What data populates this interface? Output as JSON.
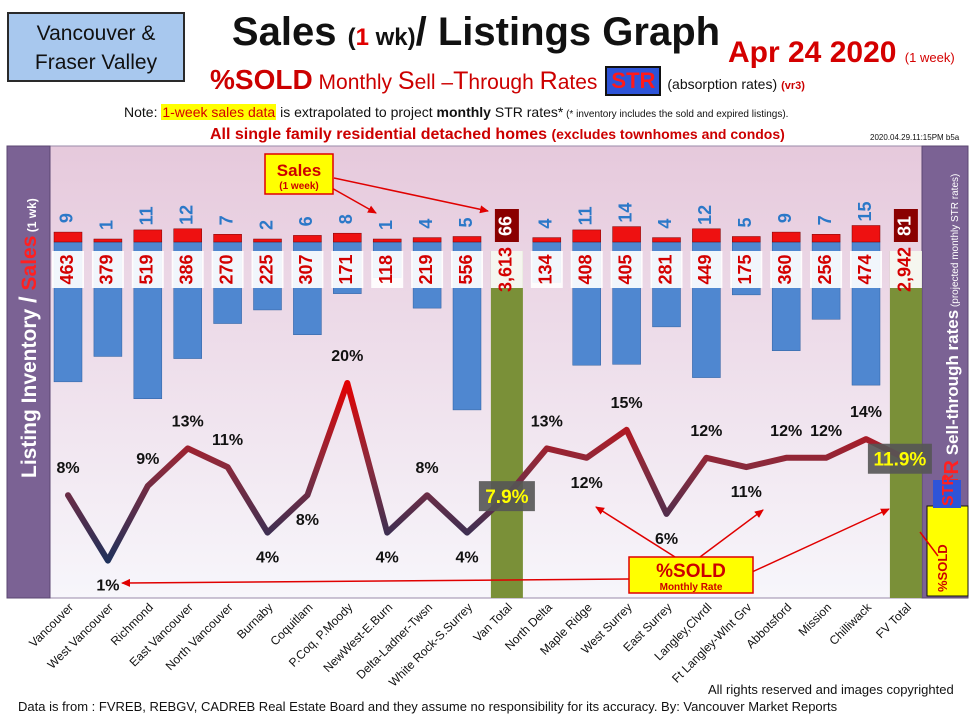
{
  "header": {
    "region_line1": "Vancouver &",
    "region_line2": "Fraser Valley",
    "title_a": "Sales ",
    "title_b": "(",
    "title_c": "1",
    "title_d": " wk)",
    "title_e": "/ Listings Graph",
    "date": "Apr 24  2020",
    "date_note": "(1 week)",
    "sub_sold": "%SOLD",
    "sub_monthly": " Monthly ",
    "sub_s": "S",
    "sub_ell": "ell –",
    "sub_t": "T",
    "sub_hrough": "hrough ",
    "sub_r": "R",
    "sub_ates": "ates",
    "sub_str": "STR",
    "sub_abs": "(absorption rates)",
    "sub_ver": "(vr3)",
    "note_a": "Note: ",
    "note_hl": "1-week sales data",
    "note_b": " is extrapolated to project ",
    "note_bold": "monthly",
    "note_c": " STR rates*",
    "note_small": " (* inventory includes the sold and expired listings).",
    "line3": "All single family residential detached homes ",
    "line3_small": "(excludes townhomes and condos)",
    "timestamp": "2020.04.29.11:15PM b5a"
  },
  "footer": {
    "rights": "All rights reserved and  images copyrighted",
    "source": "Data is from : FVREB, REBGV, CADREB Real Estate Board and they assume no responsibility for its accuracy. By: Vancouver Market Reports"
  },
  "colors": {
    "plot_top": "#e6c9dc",
    "plot_bottom": "#f7f6fb",
    "inventory_bar": "#4f87d0",
    "total_bar": "#7a9038",
    "sales_bar": "#ee1111",
    "sales_total": "#8a0000",
    "line_high": "#e60000",
    "line_low": "#16325e",
    "side_panel": "#7b6294",
    "label_yellow": "#ffff00"
  },
  "chart_data": {
    "type": "bar",
    "categories": [
      "Vancouver",
      "West Vancouver",
      "Richmond",
      "East Vancouver",
      "North Vancouver",
      "Burnaby",
      "Coquitlam",
      "P.Coq, P.Moody",
      "NewWest-E.Burn",
      "Delta-Ladner-Twsn",
      "White Rock-S.Surrey",
      "Van Total",
      "North Delta",
      "Maple Ridge",
      "West Surrey",
      "East Surrey",
      "Langley,Clvrdl",
      "Ft Langley-Wlnt Grv",
      "Abbotsford",
      "Mission",
      "Chilliwack",
      "FV Total"
    ],
    "series": [
      {
        "name": "Sales",
        "values": [
          9,
          1,
          11,
          12,
          7,
          2,
          6,
          8,
          1,
          4,
          5,
          66,
          4,
          11,
          14,
          4,
          12,
          5,
          9,
          7,
          15,
          81
        ]
      },
      {
        "name": "Listing Inventory",
        "values": [
          463,
          379,
          519,
          386,
          270,
          225,
          307,
          171,
          118,
          219,
          556,
          3613,
          134,
          408,
          405,
          281,
          449,
          175,
          360,
          256,
          474,
          2942
        ]
      },
      {
        "name": "%SOLD",
        "values": [
          8,
          1,
          9,
          13,
          11,
          4,
          8,
          20,
          4,
          8,
          4,
          7.9,
          13,
          12,
          15,
          6,
          12,
          11,
          12,
          12,
          14,
          11.9
        ]
      }
    ],
    "value_labels": {
      "sales": [
        "9",
        "1",
        "11",
        "12",
        "7",
        "2",
        "6",
        "8",
        "1",
        "4",
        "5",
        "66",
        "4",
        "11",
        "14",
        "4",
        "12",
        "5",
        "9",
        "7",
        "15",
        "81"
      ],
      "inventory": [
        "463",
        "379",
        "519",
        "386",
        "270",
        "225",
        "307",
        "171",
        "118",
        "219",
        "556",
        "3,613",
        "134",
        "408",
        "405",
        "281",
        "449",
        "175",
        "360",
        "256",
        "474",
        "2,942"
      ],
      "percent": [
        "8%",
        "1%",
        "9%",
        "13%",
        "11%",
        "4%",
        "8%",
        "20%",
        "4%",
        "8%",
        "4%",
        "7.9%",
        "13%",
        "12%",
        "15%",
        "6%",
        "12%",
        "11%",
        "12%",
        "12%",
        "14%",
        "11.9%"
      ]
    },
    "ylabel": "Listing Inventory / Sales",
    "ylabel_a": "Listing Inventory ",
    "ylabel_slash": "/",
    "ylabel_b": " Sales",
    "ylabel_c": " (1 wk)",
    "ylabel_right": "STR Sell-through rates",
    "ylabel_right_str": "STR",
    "ylabel_right_a": " Sell-through rates",
    "ylabel_right_b": " (projected monthly STR rates)",
    "callout_sales": "Sales",
    "callout_sales_sub": "(1 week)",
    "callout_sold": "%SOLD",
    "callout_sold_sub": "Monthly Rate",
    "side_badge": "%SOLD",
    "side_badge_str": "STR"
  }
}
